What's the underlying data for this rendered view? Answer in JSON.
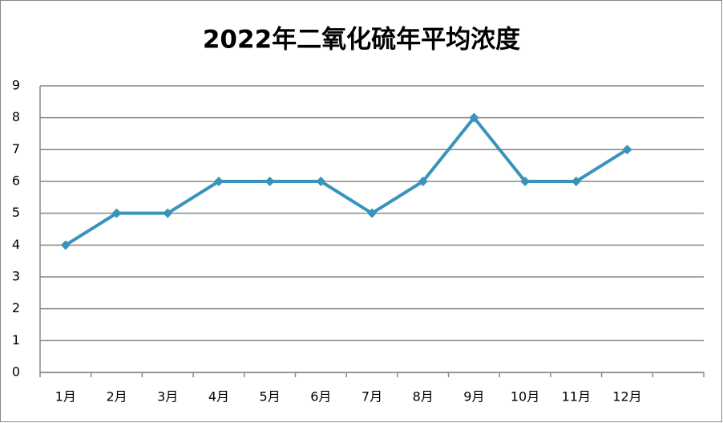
{
  "chart_data": {
    "type": "line",
    "title": "2022年二氧化硫年平均浓度",
    "categories": [
      "1月",
      "2月",
      "3月",
      "4月",
      "5月",
      "6月",
      "7月",
      "8月",
      "9月",
      "10月",
      "11月",
      "12月",
      null
    ],
    "values": [
      4,
      5,
      5,
      6,
      6,
      6,
      5,
      6,
      8,
      6,
      6,
      7,
      null
    ],
    "color": "#3a93ba",
    "ylim": [
      0,
      9
    ],
    "yticks": [
      0,
      1,
      2,
      3,
      4,
      5,
      6,
      7,
      8,
      9
    ],
    "grid": true
  }
}
